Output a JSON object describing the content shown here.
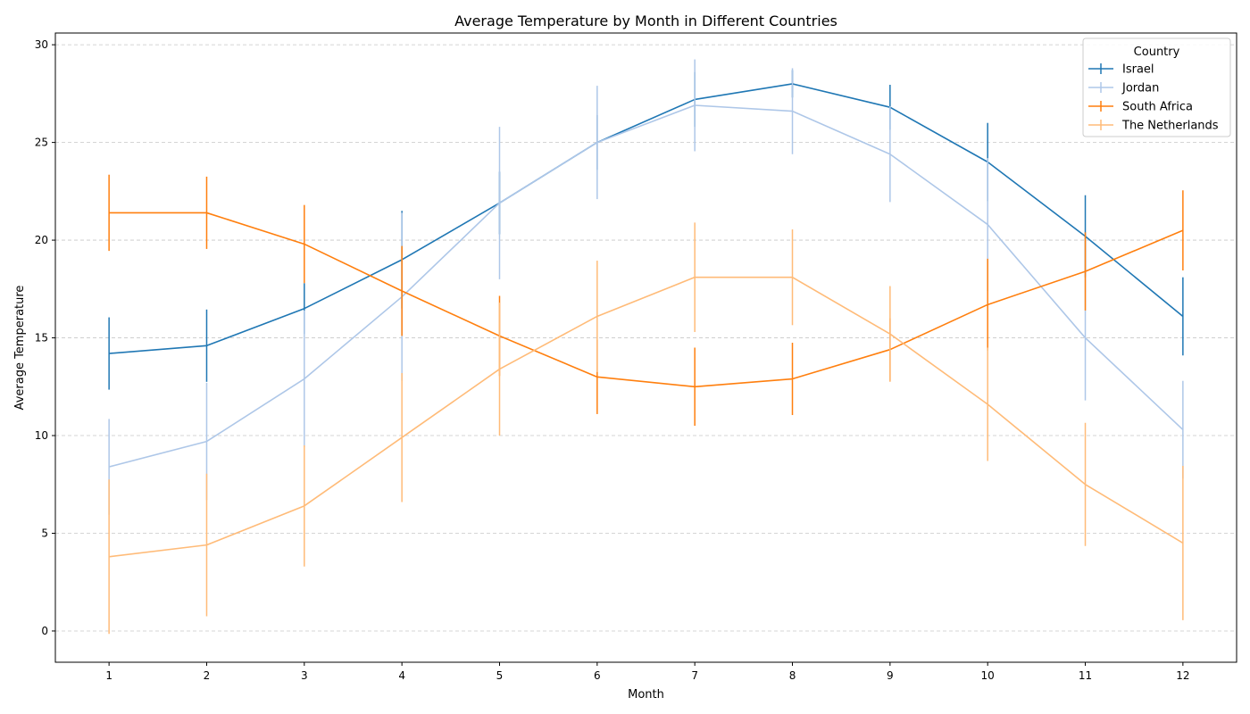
{
  "chart_data": {
    "type": "line",
    "title": "Average Temperature by Month in Different Countries",
    "xlabel": "Month",
    "ylabel": "Average Temperature",
    "legend_title": "Country",
    "legend_position": "top-right",
    "grid": "y-dashed",
    "xlim": [
      0.45,
      12.55
    ],
    "ylim": [
      -1.6,
      30.6
    ],
    "xticks": [
      1,
      2,
      3,
      4,
      5,
      6,
      7,
      8,
      9,
      10,
      11,
      12
    ],
    "yticks": [
      0,
      5,
      10,
      15,
      20,
      25,
      30
    ],
    "x": [
      1,
      2,
      3,
      4,
      5,
      6,
      7,
      8,
      9,
      10,
      11,
      12
    ],
    "series": [
      {
        "name": "Israel",
        "color": "#1f77b4",
        "values": [
          14.2,
          14.6,
          16.5,
          19.0,
          21.9,
          25.0,
          27.2,
          28.0,
          26.8,
          24.0,
          20.2,
          16.1
        ],
        "errors": [
          1.85,
          1.85,
          1.3,
          2.5,
          1.6,
          1.4,
          1.4,
          0.7,
          1.15,
          2.0,
          2.1,
          2.0
        ]
      },
      {
        "name": "Jordan",
        "color": "#aec7e8",
        "values": [
          8.4,
          9.7,
          12.9,
          17.1,
          21.9,
          25.0,
          26.9,
          26.6,
          24.4,
          20.8,
          15.0,
          10.3
        ],
        "errors": [
          2.45,
          3.0,
          3.5,
          4.3,
          3.9,
          2.9,
          2.35,
          2.2,
          2.45,
          3.4,
          3.2,
          2.5
        ]
      },
      {
        "name": "South Africa",
        "color": "#ff7f0e",
        "values": [
          21.4,
          21.4,
          19.8,
          17.4,
          15.1,
          13.0,
          12.5,
          12.9,
          14.4,
          16.7,
          18.4,
          20.5
        ],
        "errors": [
          1.95,
          1.85,
          2.0,
          2.3,
          2.05,
          1.9,
          2.0,
          1.85,
          1.6,
          2.35,
          2.0,
          2.05
        ]
      },
      {
        "name": "The Netherlands",
        "color": "#ffbb78",
        "values": [
          3.8,
          4.4,
          6.4,
          9.9,
          13.4,
          16.1,
          18.1,
          18.1,
          15.2,
          11.6,
          7.5,
          4.5
        ],
        "errors": [
          3.95,
          3.65,
          3.1,
          3.3,
          3.4,
          2.85,
          2.8,
          2.45,
          2.45,
          2.9,
          3.15,
          3.95
        ]
      }
    ]
  }
}
